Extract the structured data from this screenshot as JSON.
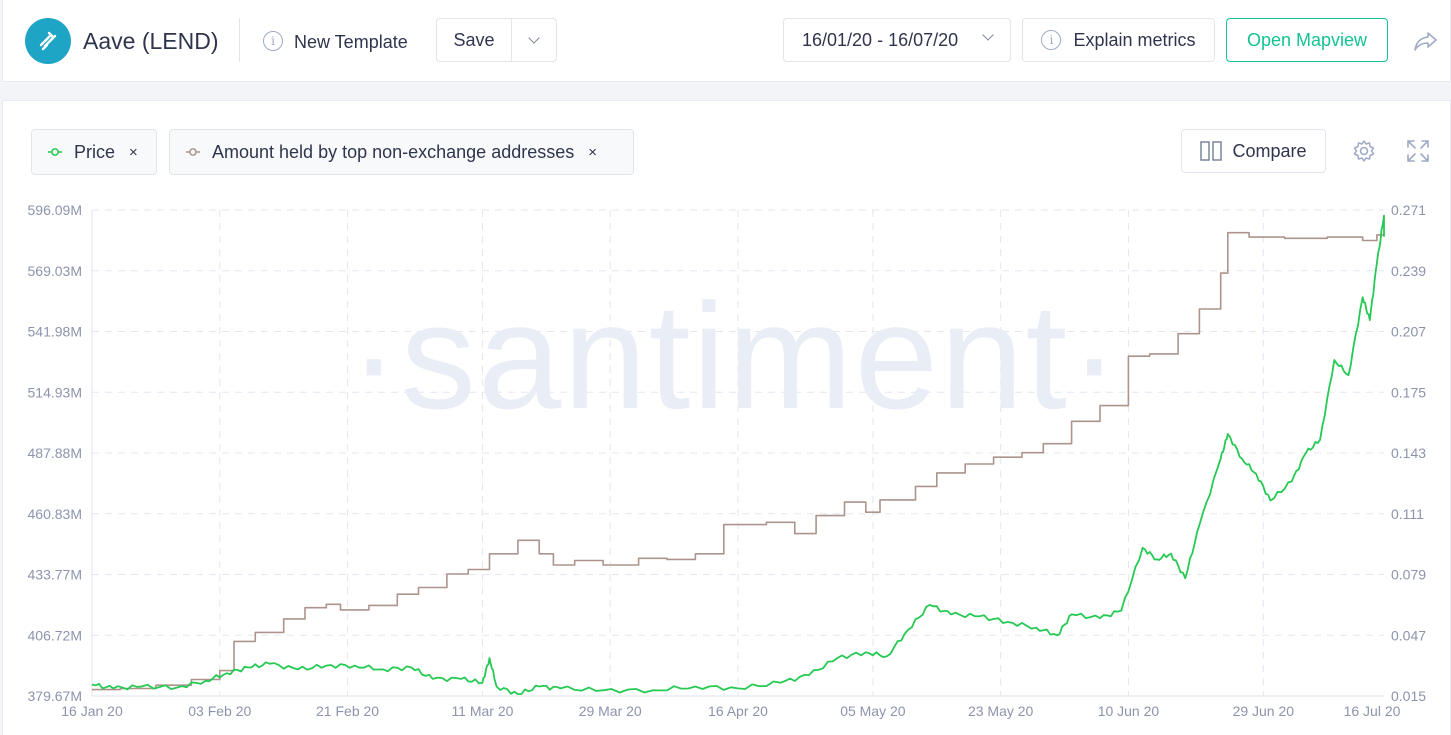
{
  "header": {
    "logo_icon": "aave-lend-logo-icon",
    "project_title": "Aave (LEND)",
    "template_label": "New Template",
    "save_label": "Save",
    "date_range": "16/01/20 - 16/07/20",
    "explain_label": "Explain metrics",
    "mapview_label": "Open Mapview",
    "share_icon": "share-icon"
  },
  "metrics": {
    "price_label": "Price",
    "amount_label": "Amount held by top non-exchange addresses",
    "close_glyph": "×",
    "compare_label": "Compare"
  },
  "colors": {
    "price": "#26c953",
    "amount": "#ac948c",
    "accent": "#14c393"
  },
  "chart_data": {
    "type": "line",
    "watermark": "·santiment·",
    "x_ticks": [
      "16 Jan 20",
      "03 Feb 20",
      "21 Feb 20",
      "11 Mar 20",
      "29 Mar 20",
      "16 Apr 20",
      "05 May 20",
      "23 May 20",
      "10 Jun 20",
      "29 Jun 20",
      "16 Jul 20"
    ],
    "y_left_ticks": [
      "596.09M",
      "569.03M",
      "541.98M",
      "514.93M",
      "487.88M",
      "460.83M",
      "433.77M",
      "406.72M",
      "379.67M"
    ],
    "y_right_ticks": [
      "0.271",
      "0.239",
      "0.207",
      "0.175",
      "0.143",
      "0.111",
      "0.079",
      "0.047",
      "0.015"
    ],
    "y_left_range": [
      379.67,
      596.09
    ],
    "y_right_range": [
      0.015,
      0.271
    ],
    "grid": true,
    "series": [
      {
        "name": "Amount held by top non-exchange addresses",
        "axis": "left",
        "unit": "M",
        "points": [
          [
            "2020-01-16",
            382.5
          ],
          [
            "2020-01-20",
            383.0
          ],
          [
            "2020-01-25",
            384.5
          ],
          [
            "2020-01-30",
            387.0
          ],
          [
            "2020-02-03",
            391.0
          ],
          [
            "2020-02-05",
            404.0
          ],
          [
            "2020-02-08",
            408.0
          ],
          [
            "2020-02-12",
            414.0
          ],
          [
            "2020-02-15",
            419.0
          ],
          [
            "2020-02-18",
            420.5
          ],
          [
            "2020-02-20",
            418.0
          ],
          [
            "2020-02-24",
            420.0
          ],
          [
            "2020-02-28",
            425.0
          ],
          [
            "2020-03-02",
            428.0
          ],
          [
            "2020-03-06",
            434.0
          ],
          [
            "2020-03-09",
            436.0
          ],
          [
            "2020-03-12",
            443.0
          ],
          [
            "2020-03-16",
            449.0
          ],
          [
            "2020-03-19",
            443.0
          ],
          [
            "2020-03-21",
            438.0
          ],
          [
            "2020-03-24",
            440.0
          ],
          [
            "2020-03-28",
            438.0
          ],
          [
            "2020-04-02",
            441.0
          ],
          [
            "2020-04-06",
            440.5
          ],
          [
            "2020-04-10",
            443.0
          ],
          [
            "2020-04-14",
            456.0
          ],
          [
            "2020-04-20",
            457.0
          ],
          [
            "2020-04-24",
            452.0
          ],
          [
            "2020-04-27",
            460.0
          ],
          [
            "2020-05-01",
            466.0
          ],
          [
            "2020-05-04",
            461.5
          ],
          [
            "2020-05-06",
            467.0
          ],
          [
            "2020-05-11",
            473.0
          ],
          [
            "2020-05-14",
            479.0
          ],
          [
            "2020-05-18",
            483.0
          ],
          [
            "2020-05-22",
            486.0
          ],
          [
            "2020-05-26",
            488.0
          ],
          [
            "2020-05-29",
            492.0
          ],
          [
            "2020-06-02",
            502.0
          ],
          [
            "2020-06-06",
            509.0
          ],
          [
            "2020-06-10",
            531.0
          ],
          [
            "2020-06-13",
            532.0
          ],
          [
            "2020-06-17",
            541.0
          ],
          [
            "2020-06-20",
            552.0
          ],
          [
            "2020-06-23",
            568.0
          ],
          [
            "2020-06-24",
            586.0
          ],
          [
            "2020-06-27",
            584.0
          ],
          [
            "2020-07-02",
            583.5
          ],
          [
            "2020-07-08",
            584.0
          ],
          [
            "2020-07-13",
            582.5
          ],
          [
            "2020-07-15",
            585.0
          ],
          [
            "2020-07-16",
            584.5
          ]
        ]
      },
      {
        "name": "Price",
        "axis": "right",
        "unit": "USD",
        "points": [
          [
            "2020-01-16",
            0.021
          ],
          [
            "2020-01-19",
            0.019
          ],
          [
            "2020-01-23",
            0.02
          ],
          [
            "2020-01-28",
            0.0195
          ],
          [
            "2020-02-01",
            0.023
          ],
          [
            "2020-02-04",
            0.027
          ],
          [
            "2020-02-07",
            0.03
          ],
          [
            "2020-02-10",
            0.032
          ],
          [
            "2020-02-14",
            0.029
          ],
          [
            "2020-02-18",
            0.031
          ],
          [
            "2020-02-22",
            0.031
          ],
          [
            "2020-02-26",
            0.029
          ],
          [
            "2020-03-01",
            0.03
          ],
          [
            "2020-03-04",
            0.024
          ],
          [
            "2020-03-08",
            0.024
          ],
          [
            "2020-03-11",
            0.022
          ],
          [
            "2020-03-12",
            0.035
          ],
          [
            "2020-03-13",
            0.02
          ],
          [
            "2020-03-16",
            0.016
          ],
          [
            "2020-03-19",
            0.02
          ],
          [
            "2020-03-22",
            0.019
          ],
          [
            "2020-03-28",
            0.018
          ],
          [
            "2020-04-04",
            0.018
          ],
          [
            "2020-04-10",
            0.02
          ],
          [
            "2020-04-16",
            0.019
          ],
          [
            "2020-04-22",
            0.022
          ],
          [
            "2020-04-26",
            0.026
          ],
          [
            "2020-04-30",
            0.035
          ],
          [
            "2020-05-04",
            0.038
          ],
          [
            "2020-05-07",
            0.036
          ],
          [
            "2020-05-10",
            0.05
          ],
          [
            "2020-05-13",
            0.063
          ],
          [
            "2020-05-16",
            0.058
          ],
          [
            "2020-05-20",
            0.057
          ],
          [
            "2020-05-24",
            0.054
          ],
          [
            "2020-05-28",
            0.051
          ],
          [
            "2020-05-31",
            0.047
          ],
          [
            "2020-06-02",
            0.058
          ],
          [
            "2020-06-06",
            0.056
          ],
          [
            "2020-06-09",
            0.06
          ],
          [
            "2020-06-12",
            0.093
          ],
          [
            "2020-06-14",
            0.087
          ],
          [
            "2020-06-16",
            0.09
          ],
          [
            "2020-06-18",
            0.077
          ],
          [
            "2020-06-20",
            0.105
          ],
          [
            "2020-06-23",
            0.14
          ],
          [
            "2020-06-24",
            0.153
          ],
          [
            "2020-06-26",
            0.14
          ],
          [
            "2020-06-28",
            0.132
          ],
          [
            "2020-06-30",
            0.118
          ],
          [
            "2020-07-03",
            0.128
          ],
          [
            "2020-07-05",
            0.143
          ],
          [
            "2020-07-07",
            0.15
          ],
          [
            "2020-07-09",
            0.192
          ],
          [
            "2020-07-11",
            0.184
          ],
          [
            "2020-07-13",
            0.225
          ],
          [
            "2020-07-14",
            0.213
          ],
          [
            "2020-07-15",
            0.243
          ],
          [
            "2020-07-16",
            0.268
          ],
          [
            "2020-07-16",
            0.257
          ]
        ]
      }
    ]
  }
}
